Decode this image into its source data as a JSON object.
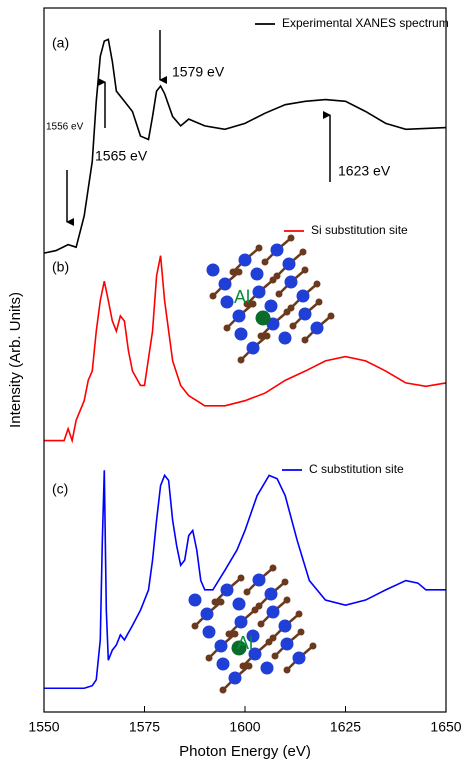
{
  "chart_data": {
    "type": "line",
    "xlabel": "Photon Energy (eV)",
    "ylabel": "Intensity (Arb. Units)",
    "xlim": [
      1550,
      1650
    ],
    "xticks": [
      1550,
      1575,
      1600,
      1625,
      1650
    ],
    "ylim": [
      0,
      8.3
    ],
    "series": [
      {
        "name": "Experimental XANES spectrum",
        "color": "#000000",
        "x": [
          1550,
          1553,
          1556,
          1558,
          1560,
          1562,
          1563,
          1564,
          1565,
          1566,
          1567,
          1568,
          1570,
          1572,
          1574,
          1576,
          1577,
          1578,
          1579,
          1580,
          1582,
          1584,
          1586,
          1590,
          1595,
          1600,
          1605,
          1610,
          1615,
          1620,
          1625,
          1630,
          1635,
          1640,
          1645,
          1650
        ],
        "values": [
          5.41,
          5.44,
          5.51,
          5.48,
          5.85,
          6.49,
          7.2,
          7.73,
          7.91,
          7.93,
          7.67,
          7.32,
          7.2,
          7.08,
          6.79,
          6.75,
          7.02,
          7.32,
          7.38,
          7.29,
          7.02,
          6.91,
          6.99,
          6.91,
          6.87,
          6.94,
          7.06,
          7.16,
          7.2,
          7.22,
          7.2,
          7.08,
          6.94,
          6.87,
          6.88,
          6.89
        ]
      },
      {
        "name": "Si substitution site",
        "color": "#ff0000",
        "x": [
          1550,
          1555,
          1556,
          1557,
          1558,
          1560,
          1561,
          1562,
          1563,
          1564,
          1565,
          1566,
          1567,
          1568,
          1569,
          1570,
          1571,
          1572,
          1574,
          1575,
          1577,
          1578,
          1579,
          1580,
          1582,
          1584,
          1586,
          1588,
          1590,
          1595,
          1600,
          1605,
          1610,
          1615,
          1620,
          1625,
          1630,
          1635,
          1640,
          1645,
          1650
        ],
        "values": [
          3.2,
          3.2,
          3.34,
          3.2,
          3.44,
          3.67,
          3.91,
          4.02,
          4.49,
          4.85,
          5.08,
          4.85,
          4.61,
          4.49,
          4.67,
          4.61,
          4.26,
          4.02,
          3.85,
          3.85,
          4.49,
          5.14,
          5.38,
          4.85,
          4.14,
          3.85,
          3.73,
          3.67,
          3.61,
          3.61,
          3.67,
          3.76,
          3.91,
          4.02,
          4.14,
          4.19,
          4.14,
          4.02,
          3.88,
          3.84,
          3.88
        ]
      },
      {
        "name": "C substitution site",
        "color": "#0000ff",
        "x": [
          1550,
          1560,
          1562,
          1563,
          1564,
          1564.5,
          1565,
          1565.5,
          1566,
          1567,
          1568,
          1569,
          1570,
          1572,
          1574,
          1575,
          1576,
          1577,
          1578,
          1579,
          1580,
          1581,
          1582,
          1583,
          1584,
          1585,
          1586,
          1587,
          1588,
          1589,
          1590,
          1592,
          1595,
          1598,
          1600,
          1603,
          1606,
          1608,
          1610,
          1613,
          1616,
          1620,
          1625,
          1630,
          1635,
          1640,
          1643,
          1645,
          1650
        ],
        "values": [
          0.28,
          0.28,
          0.31,
          0.38,
          0.85,
          2.0,
          2.85,
          1.2,
          0.61,
          0.73,
          0.79,
          0.91,
          0.85,
          1.02,
          1.2,
          1.32,
          1.44,
          1.79,
          2.26,
          2.67,
          2.79,
          2.73,
          2.26,
          1.96,
          1.73,
          1.79,
          2.08,
          2.14,
          1.91,
          1.55,
          1.44,
          1.44,
          1.67,
          1.91,
          2.14,
          2.55,
          2.79,
          2.75,
          2.55,
          2.02,
          1.55,
          1.32,
          1.26,
          1.32,
          1.44,
          1.55,
          1.52,
          1.44,
          1.44
        ]
      }
    ],
    "annotations": [
      "(a)",
      "(b)",
      "(c)",
      "1565 eV",
      "1579 eV",
      "1556 eV",
      "1623 eV",
      "Al",
      "Al"
    ]
  }
}
